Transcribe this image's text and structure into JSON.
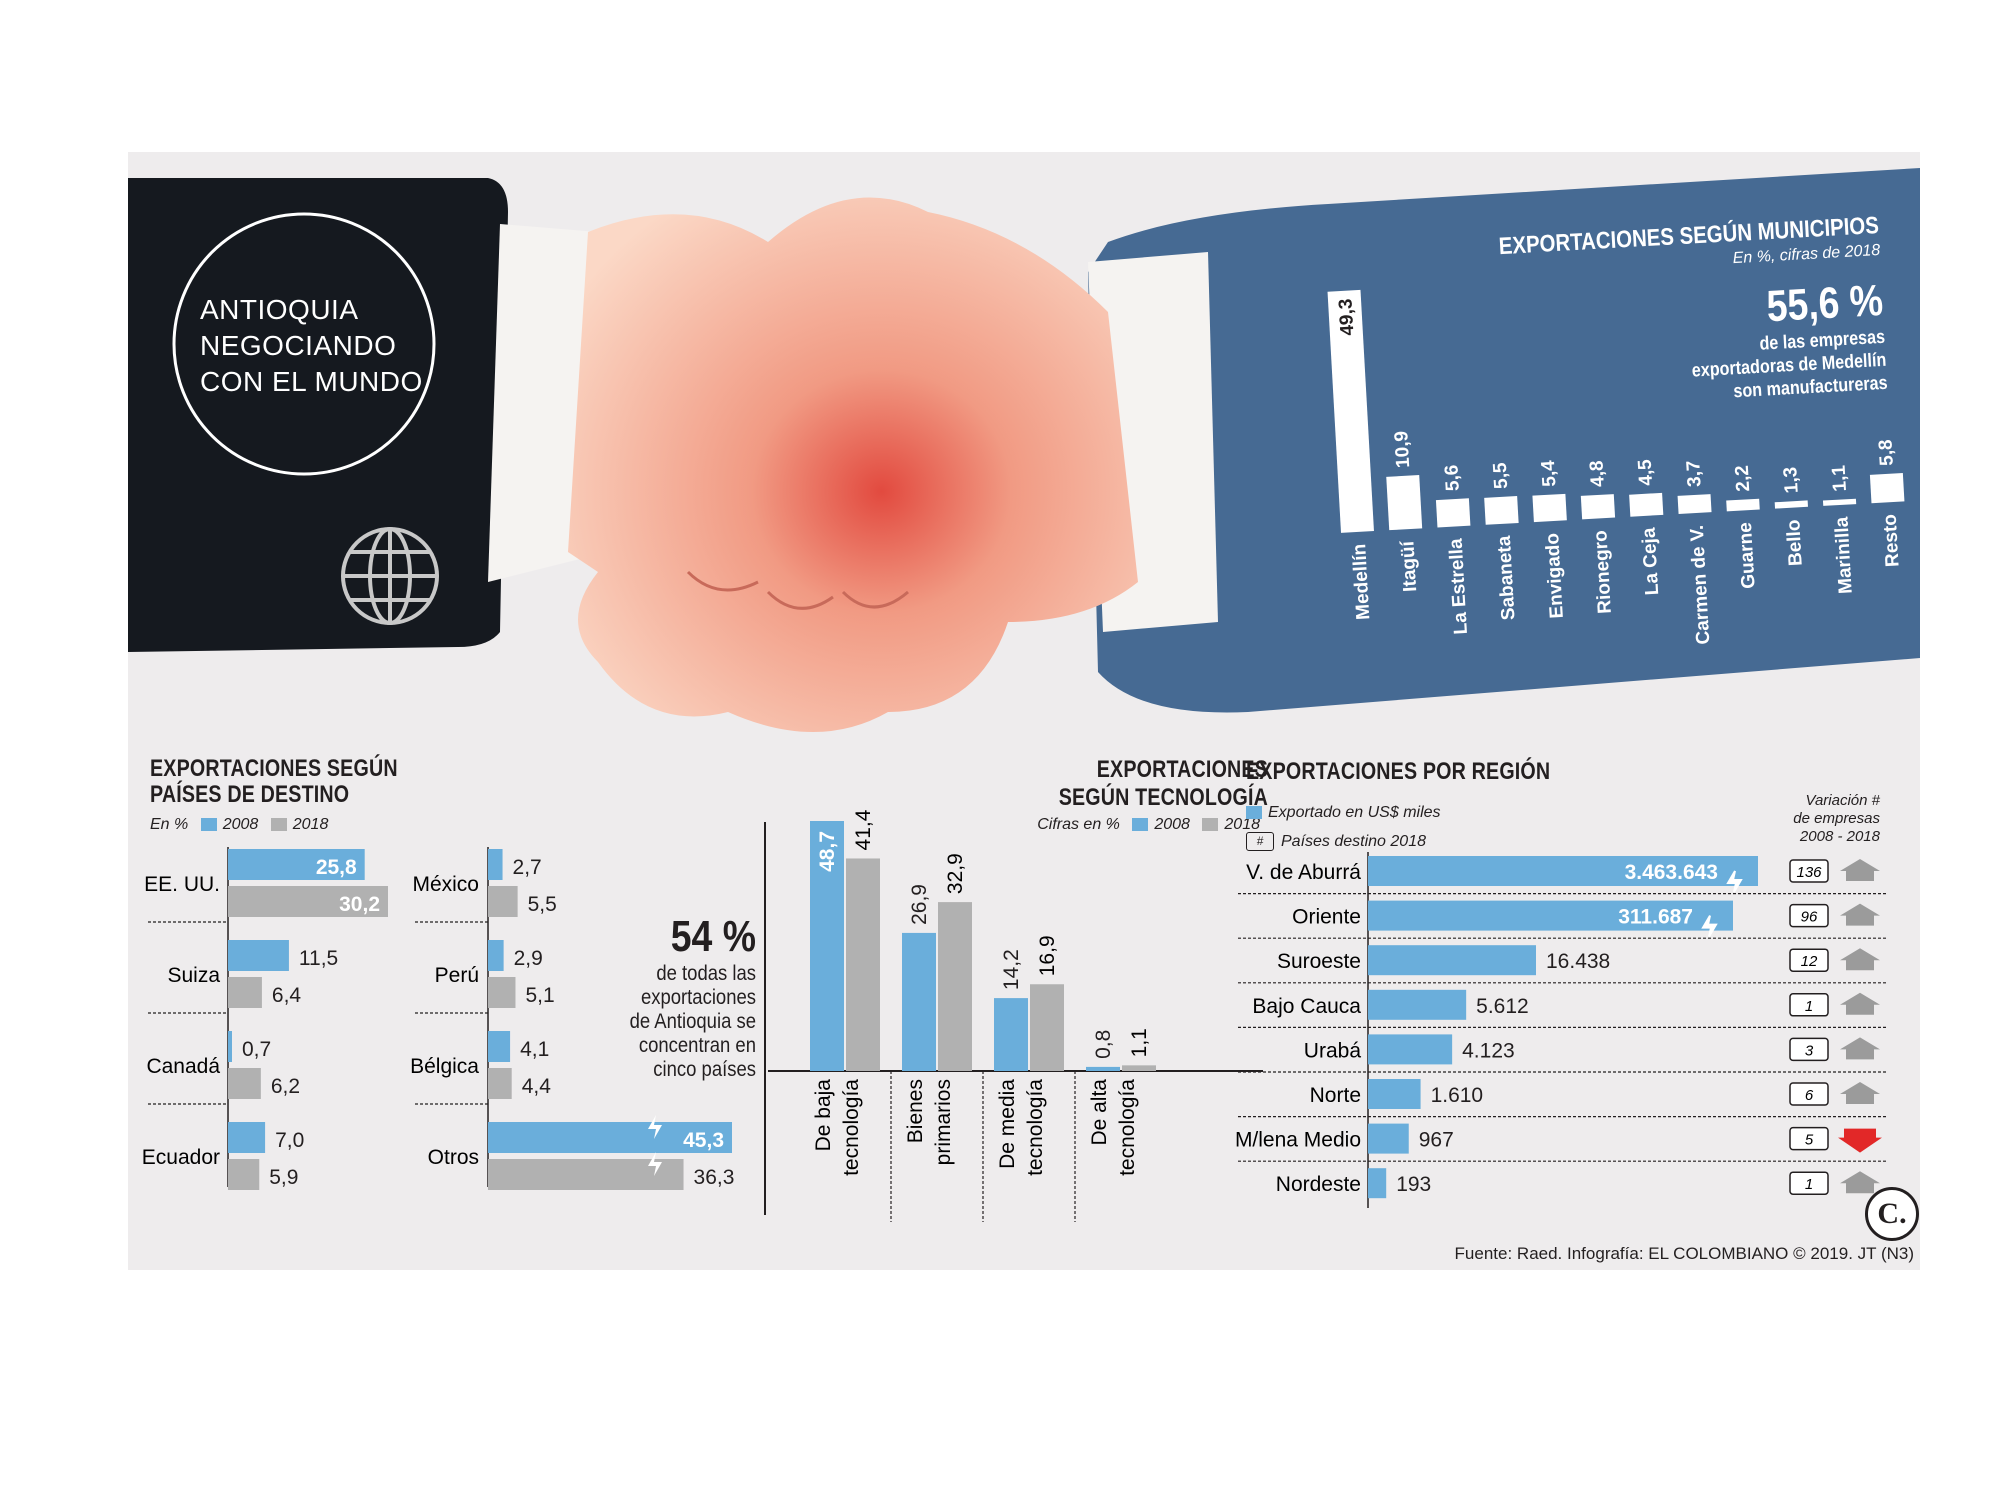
{
  "headline": [
    "ANTIOQUIA",
    "NEGOCIANDO",
    "CON EL MUNDO"
  ],
  "municipios": {
    "title": "EXPORTACIONES SEGÚN MUNICIPIOS",
    "subtitle": "En %, cifras de 2018",
    "highlight_value": "55,6 %",
    "highlight_text": [
      "de las empresas",
      "exportadoras de Medellín",
      "son manufactureras"
    ]
  },
  "paises": {
    "title": [
      "EXPORTACIONES SEGÚN",
      "PAÍSES DE DESTINO"
    ],
    "unit": "En %",
    "legend": [
      "2008",
      "2018"
    ],
    "highlight_value": "54 %",
    "highlight_text": [
      "de todas las",
      "exportaciones",
      "de Antioquia se",
      "concentran en",
      "cinco países"
    ]
  },
  "tecnologia": {
    "title": [
      "EXPORTACIONES",
      "SEGÚN TECNOLOGÍA"
    ],
    "unit": "Cifras en %",
    "legend": [
      "2008",
      "2018"
    ]
  },
  "region": {
    "title": "EXPORTACIONES POR REGIÓN",
    "legend_bar": "Exportado en US$ miles",
    "legend_box_symbol": "#",
    "legend_box": "Países destino 2018",
    "variation_header": [
      "Variación #",
      "de empresas",
      "2008 - 2018"
    ]
  },
  "logo_letter": "C.",
  "source": "Fuente: Raed. Infografía: EL COLOMBIANO © 2019. JT (N3)",
  "colors": {
    "blue": "#6aaedb",
    "grey": "#b1b1b1",
    "navy": "#466a93",
    "dark": "#15191f",
    "red": "#e22828"
  },
  "chart_data": [
    {
      "id": "municipios",
      "type": "bar",
      "title": "EXPORTACIONES SEGÚN MUNICIPIOS",
      "categories": [
        "Medellín",
        "Itagüí",
        "La Estrella",
        "Sabaneta",
        "Envigado",
        "Rionegro",
        "La Ceja",
        "Carmen de V.",
        "Guarne",
        "Bello",
        "Marinilla",
        "Resto"
      ],
      "values": [
        49.3,
        10.9,
        5.6,
        5.5,
        5.4,
        4.8,
        4.5,
        3.7,
        2.2,
        1.3,
        1.1,
        5.8
      ],
      "labels": [
        "49,3",
        "10,9",
        "5,6",
        "5,5",
        "5,4",
        "4,8",
        "4,5",
        "3,7",
        "2,2",
        "1,3",
        "1,1",
        "5,8"
      ],
      "ylim": [
        0,
        50
      ]
    },
    {
      "id": "paises",
      "type": "bar",
      "orientation": "horizontal",
      "title": "EXPORTACIONES SEGÚN PAÍSES DE DESTINO",
      "categories": [
        "EE. UU.",
        "Suiza",
        "Canadá",
        "Ecuador",
        "México",
        "Perú",
        "Bélgica",
        "Otros"
      ],
      "series": [
        {
          "name": "2008",
          "values": [
            25.8,
            11.5,
            0.7,
            7.0,
            2.7,
            2.9,
            4.1,
            45.3
          ],
          "labels": [
            "25,8",
            "11,5",
            "0,7",
            "7,0",
            "2,7",
            "2,9",
            "4,1",
            "45,3"
          ]
        },
        {
          "name": "2018",
          "values": [
            30.2,
            6.4,
            6.2,
            5.9,
            5.5,
            5.1,
            4.4,
            36.3
          ],
          "labels": [
            "30,2",
            "6,4",
            "6,2",
            "5,9",
            "5,5",
            "5,1",
            "4,4",
            "36,3"
          ]
        }
      ]
    },
    {
      "id": "tecnologia",
      "type": "bar",
      "title": "EXPORTACIONES SEGÚN TECNOLOGÍA",
      "categories": [
        "De baja tecnología",
        "Bienes primarios",
        "De media tecnología",
        "De alta tecnología"
      ],
      "category_lines": [
        [
          "De baja",
          "tecnología"
        ],
        [
          "Bienes",
          "primarios"
        ],
        [
          "De media",
          "tecnología"
        ],
        [
          "De alta",
          "tecnología"
        ]
      ],
      "series": [
        {
          "name": "2008",
          "values": [
            48.7,
            26.9,
            14.2,
            0.8
          ],
          "labels": [
            "48,7",
            "26,9",
            "14,2",
            "0,8"
          ]
        },
        {
          "name": "2018",
          "values": [
            41.4,
            32.9,
            16.9,
            1.1
          ],
          "labels": [
            "41,4",
            "32,9",
            "16,9",
            "1,1"
          ]
        }
      ]
    },
    {
      "id": "region",
      "type": "bar",
      "orientation": "horizontal",
      "title": "EXPORTACIONES POR REGIÓN",
      "categories": [
        "V. de Aburrá",
        "Oriente",
        "Suroeste",
        "Bajo Cauca",
        "Urabá",
        "Norte",
        "M/lena Medio",
        "Nordeste"
      ],
      "values": [
        3463643,
        311687,
        16438,
        5612,
        4123,
        1610,
        967,
        193
      ],
      "labels": [
        "3.463.643",
        "311.687",
        "16.438",
        "5.612",
        "4.123",
        "1.610",
        "967",
        "193"
      ],
      "destination_countries": [
        "136",
        "96",
        "12",
        "1",
        "3",
        "6",
        "5",
        "1"
      ],
      "variation_trend": [
        "up",
        "up",
        "up",
        "up",
        "up",
        "up",
        "down",
        "up"
      ],
      "scale_break": [
        true,
        true,
        false,
        false,
        false,
        false,
        false,
        false
      ]
    }
  ]
}
